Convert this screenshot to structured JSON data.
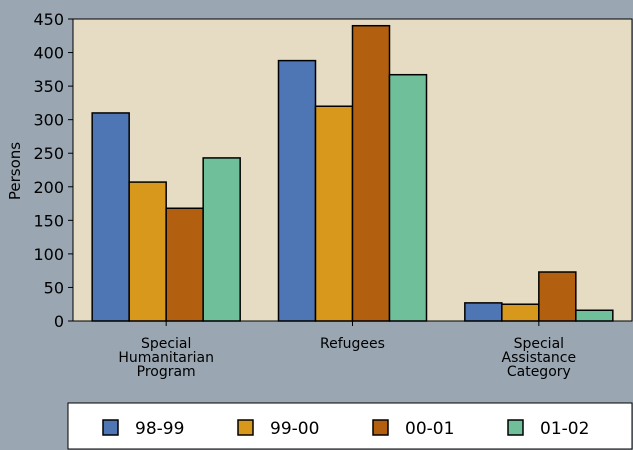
{
  "chart_data": {
    "type": "bar",
    "ylabel": "Persons",
    "ylim": [
      0,
      450
    ],
    "yticks": [
      "0",
      "50",
      "100",
      "150",
      "200",
      "250",
      "300",
      "350",
      "400",
      "450"
    ],
    "categories": [
      [
        "Special",
        "Humanitarian",
        "Program"
      ],
      [
        "Refugees"
      ],
      [
        "Special",
        "Assistance",
        "Category"
      ]
    ],
    "series": [
      {
        "name": "98-99",
        "values": [
          310,
          388,
          27
        ],
        "color": "#4f76b4"
      },
      {
        "name": "99-00",
        "values": [
          207,
          320,
          25
        ],
        "color": "#d8981c"
      },
      {
        "name": "00-01",
        "values": [
          168,
          440,
          73
        ],
        "color": "#b2600f"
      },
      {
        "name": "01-02",
        "values": [
          243,
          367,
          16
        ],
        "color": "#6fbf9b"
      }
    ],
    "grid": false,
    "legend_position": "bottom",
    "plot_background": "#e6dcc4",
    "page_background": "#9aa6b2"
  }
}
